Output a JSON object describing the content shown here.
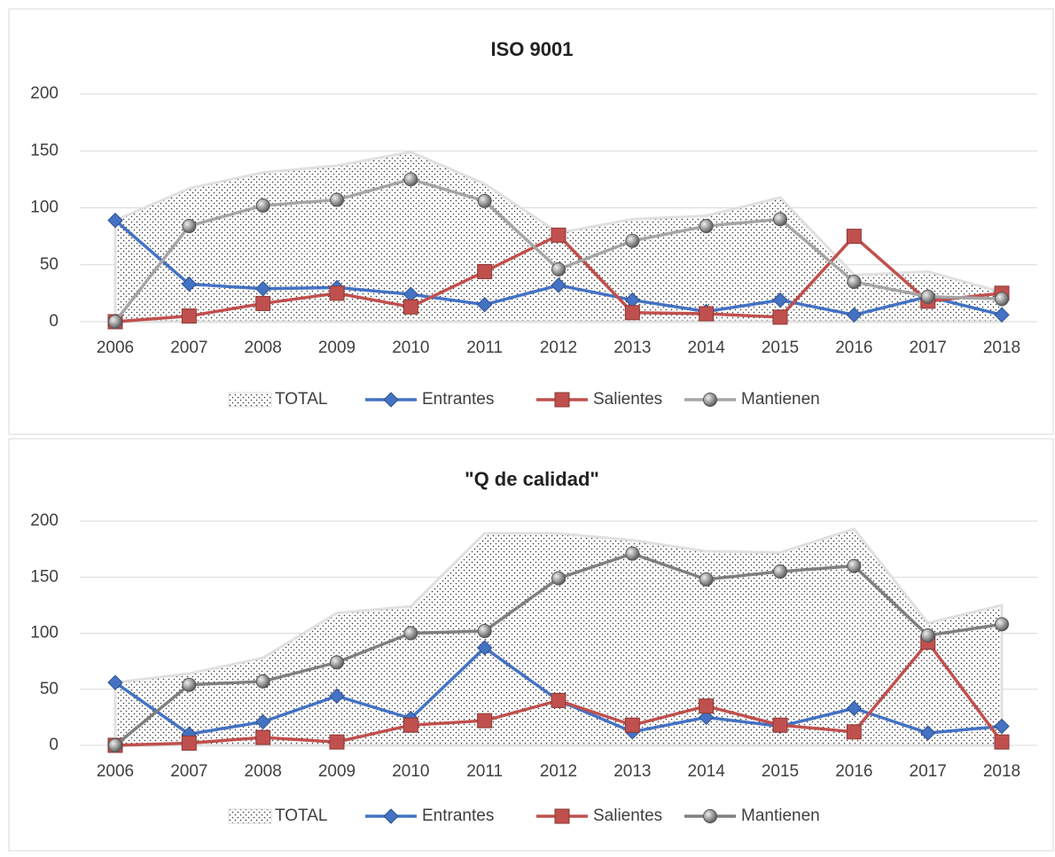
{
  "chart_data": [
    {
      "type": "line",
      "title": "ISO 9001",
      "categories": [
        "2006",
        "2007",
        "2008",
        "2009",
        "2010",
        "2011",
        "2012",
        "2013",
        "2014",
        "2015",
        "2016",
        "2017",
        "2018"
      ],
      "ylim": [
        0,
        200
      ],
      "yticks": [
        0,
        50,
        100,
        150,
        200
      ],
      "grid": true,
      "legend": "bottom",
      "series": [
        {
          "name": "TOTAL",
          "type": "area",
          "color": "#333333",
          "values": [
            89,
            117,
            131,
            137,
            149,
            121,
            78,
            90,
            93,
            109,
            41,
            44,
            26
          ]
        },
        {
          "name": "Entrantes",
          "type": "line",
          "marker": "diamond",
          "color": "#4472c4",
          "values": [
            89,
            33,
            29,
            30,
            24,
            15,
            32,
            19,
            9,
            19,
            6,
            22,
            6
          ]
        },
        {
          "name": "Salientes",
          "type": "line",
          "marker": "square",
          "color": "#c0504d",
          "values": [
            0,
            5,
            16,
            25,
            13,
            44,
            76,
            8,
            7,
            4,
            75,
            18,
            25
          ]
        },
        {
          "name": "Mantienen",
          "type": "line",
          "marker": "circle",
          "color": "#a5a5a5",
          "values": [
            0,
            84,
            102,
            107,
            125,
            106,
            46,
            71,
            84,
            90,
            35,
            22,
            20
          ]
        }
      ]
    },
    {
      "type": "line",
      "title": "\"Q de calidad\"",
      "categories": [
        "2006",
        "2007",
        "2008",
        "2009",
        "2010",
        "2011",
        "2012",
        "2013",
        "2014",
        "2015",
        "2016",
        "2017",
        "2018"
      ],
      "ylim": [
        0,
        200
      ],
      "yticks": [
        0,
        50,
        100,
        150,
        200
      ],
      "grid": true,
      "legend": "bottom",
      "series": [
        {
          "name": "TOTAL",
          "type": "area",
          "color": "#333333",
          "values": [
            56,
            64,
            78,
            118,
            124,
            189,
            189,
            183,
            173,
            172,
            193,
            109,
            125
          ]
        },
        {
          "name": "Entrantes",
          "type": "line",
          "marker": "diamond",
          "color": "#4472c4",
          "values": [
            56,
            10,
            21,
            44,
            24,
            87,
            40,
            12,
            25,
            17,
            33,
            11,
            17
          ]
        },
        {
          "name": "Salientes",
          "type": "line",
          "marker": "square",
          "color": "#c0504d",
          "values": [
            0,
            2,
            7,
            3,
            18,
            22,
            40,
            18,
            35,
            18,
            12,
            92,
            3
          ]
        },
        {
          "name": "Mantienen",
          "type": "line",
          "marker": "circle",
          "color": "#7f7f7f",
          "values": [
            0,
            54,
            57,
            74,
            100,
            102,
            149,
            171,
            148,
            155,
            160,
            98,
            108
          ]
        }
      ]
    }
  ]
}
